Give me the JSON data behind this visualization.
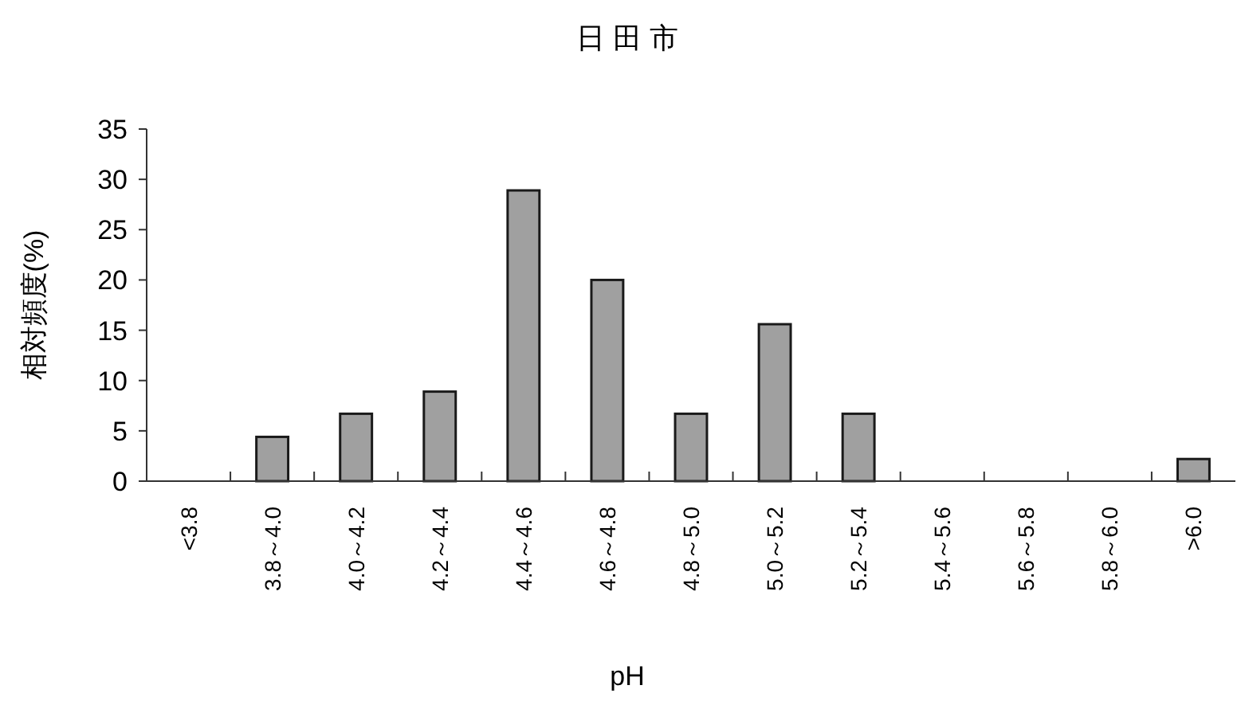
{
  "chart_data": {
    "type": "bar",
    "title": "日 田 市",
    "xlabel": "pH",
    "ylabel": "相対頻度(%)",
    "categories": [
      "<3.8",
      "3.8～4.0",
      "4.0～4.2",
      "4.2～4.4",
      "4.4～4.6",
      "4.6～4.8",
      "4.8～5.0",
      "5.0～5.2",
      "5.2～5.4",
      "5.4～5.6",
      "5.6～5.8",
      "5.8～6.0",
      ">6.0"
    ],
    "values": [
      0,
      4.4,
      6.7,
      8.9,
      28.9,
      20,
      6.7,
      15.6,
      6.7,
      0,
      0,
      0,
      2.2
    ],
    "color": "#a0a0a0",
    "ylim": [
      0,
      35
    ],
    "yticks": [
      0,
      5,
      10,
      15,
      20,
      25,
      30,
      35
    ],
    "grid": false
  }
}
